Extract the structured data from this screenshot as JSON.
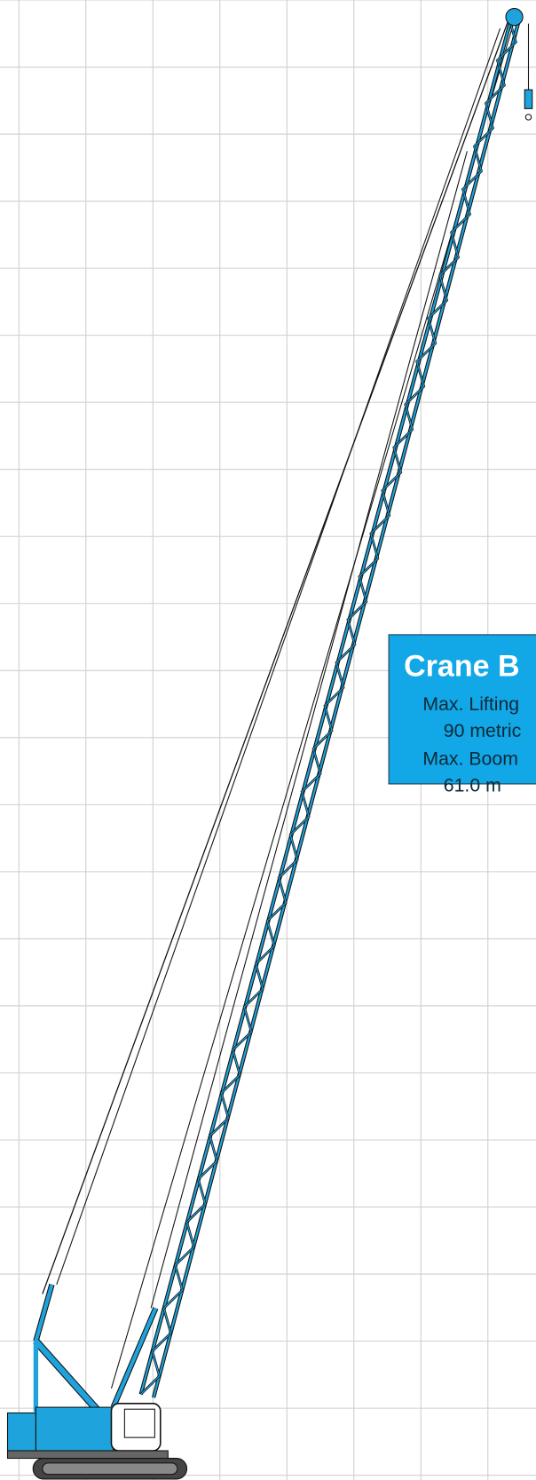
{
  "info_box": {
    "title": "Crane B",
    "lines": [
      "Max. Lifting",
      "90 metric",
      "Max. Boom",
      "61.0 m"
    ]
  }
}
